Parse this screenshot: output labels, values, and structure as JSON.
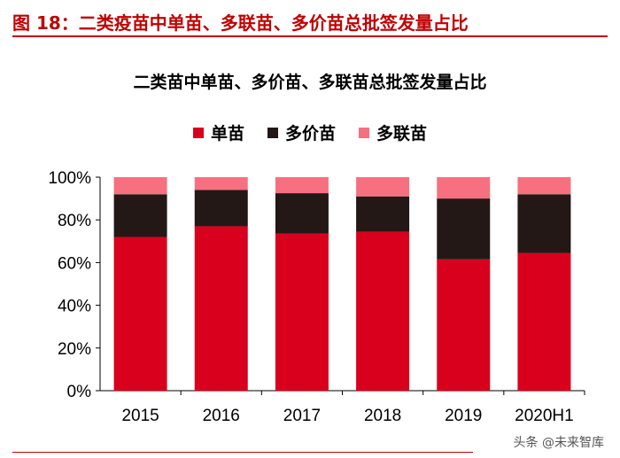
{
  "figure": {
    "title": "图 18：二类疫苗中单苗、多联苗、多价苗总批签发量占比"
  },
  "watermark": "头条 @未来智库",
  "colors": {
    "single": "#d8001c",
    "multivalent": "#231816",
    "combined": "#f7707f",
    "accent": "#c00000"
  },
  "chart_data": {
    "type": "bar",
    "stacked": true,
    "title": "二类苗中单苗、多价苗、多联苗总批签发量占比",
    "categories": [
      "2015",
      "2016",
      "2017",
      "2018",
      "2019",
      "2020H1"
    ],
    "series": [
      {
        "name": "单苗",
        "color_key": "single",
        "values": [
          72,
          77,
          73.5,
          74.5,
          61.5,
          64.5
        ]
      },
      {
        "name": "多价苗",
        "color_key": "multivalent",
        "values": [
          20,
          17,
          19,
          16.5,
          28.5,
          27.5
        ]
      },
      {
        "name": "多联苗",
        "color_key": "combined",
        "values": [
          8,
          6,
          7.5,
          9,
          10,
          8
        ]
      }
    ],
    "ylim": [
      0,
      100
    ],
    "yticks": [
      0,
      20,
      40,
      60,
      80,
      100
    ],
    "ytick_labels": [
      "0%",
      "20%",
      "40%",
      "60%",
      "80%",
      "100%"
    ],
    "xlabel": "",
    "ylabel": "",
    "legend_position": "top-center",
    "grid": false
  }
}
